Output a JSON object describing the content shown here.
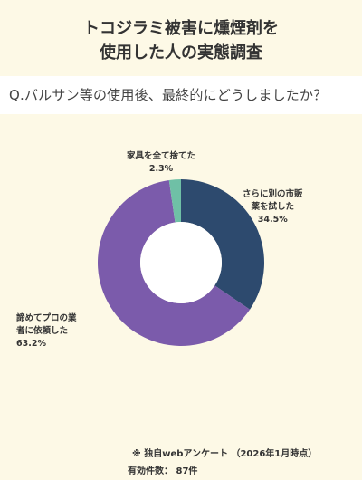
{
  "title": {
    "line1": "トコジラミ被害に燻煙剤を",
    "line2": "使用した人の実態調査"
  },
  "question": "Q.バルサン等の使用後、最終的にどうしましたか？",
  "chart_data": {
    "type": "pie",
    "title": "Q.バルサン等の使用後、最終的にどうしましたか？",
    "donut": true,
    "slices": [
      {
        "label_lines": [
          "さらに別の市販",
          "薬を試した"
        ],
        "value": 34.5,
        "value_text": "34.5%",
        "color": "#2d4a6e"
      },
      {
        "label_lines": [
          "諦めてプロの業",
          "者に依頼した"
        ],
        "value": 63.2,
        "value_text": "63.2%",
        "color": "#7b5bab"
      },
      {
        "label_lines": [
          "家具を全て捨てた"
        ],
        "value": 2.3,
        "value_text": "2.3%",
        "color": "#6fc0a6"
      }
    ]
  },
  "footer": {
    "note": "※ 独自webアンケート （2026年1月時点）",
    "count": "有効件数： 87件"
  }
}
